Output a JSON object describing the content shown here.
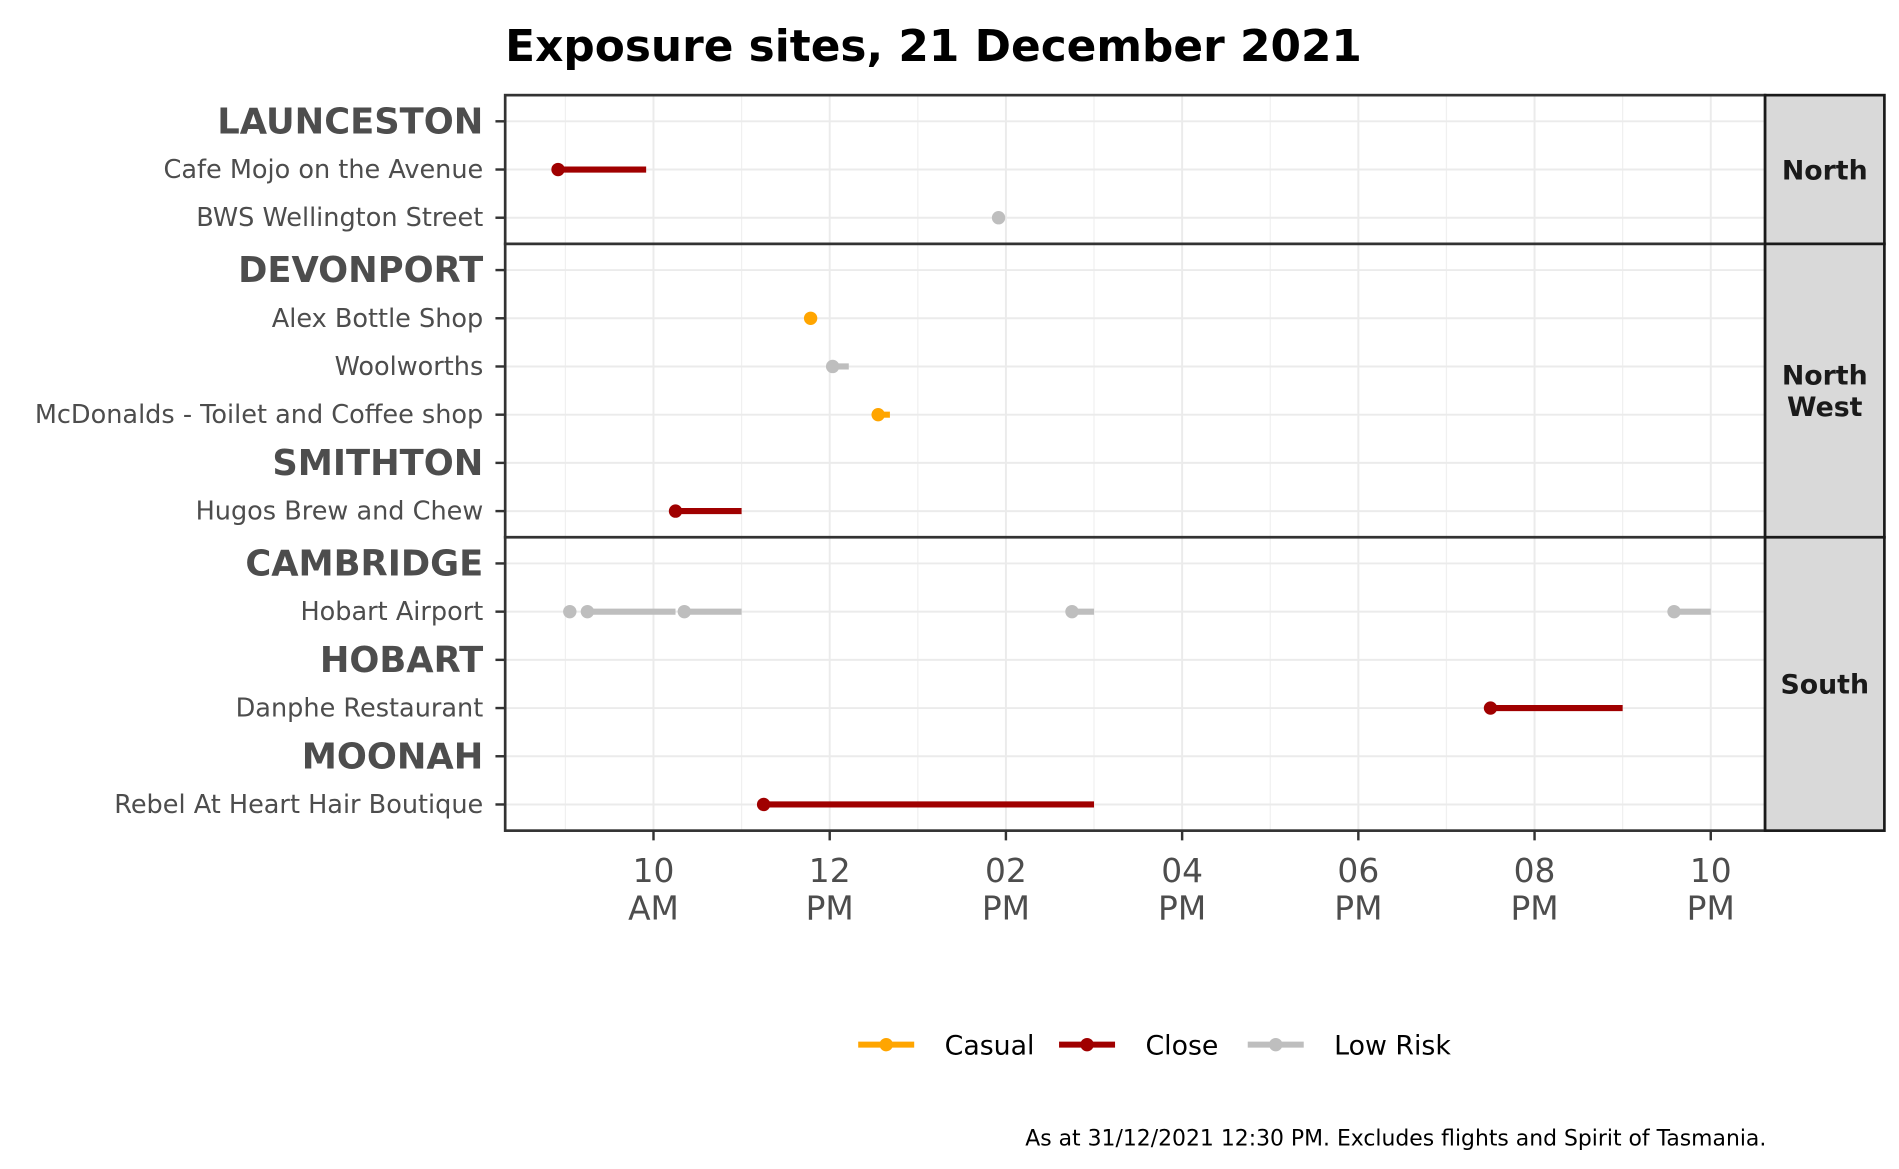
{
  "chart_data": {
    "type": "timeline",
    "title": "Exposure sites, 21 December 2021",
    "xlabel": "",
    "ylabel": "",
    "xlim": [
      "08:19",
      "22:37"
    ],
    "x_ticks": [
      {
        "time": "10:00",
        "line1": "10",
        "line2": "AM"
      },
      {
        "time": "12:00",
        "line1": "12",
        "line2": "PM"
      },
      {
        "time": "14:00",
        "line1": "02",
        "line2": "PM"
      },
      {
        "time": "16:00",
        "line1": "04",
        "line2": "PM"
      },
      {
        "time": "18:00",
        "line1": "06",
        "line2": "PM"
      },
      {
        "time": "20:00",
        "line1": "08",
        "line2": "PM"
      },
      {
        "time": "22:00",
        "line1": "10",
        "line2": "PM"
      }
    ],
    "grid": true,
    "legend_position": "bottom",
    "legend": [
      {
        "name": "Casual",
        "color": "#FFA500"
      },
      {
        "name": "Close",
        "color": "#A00000"
      },
      {
        "name": "Low Risk",
        "color": "#BEBEBE"
      }
    ],
    "panels": [
      {
        "strip": [
          "North"
        ],
        "rows": [
          {
            "label": "LAUNCESTON",
            "heading": true,
            "segments": []
          },
          {
            "label": "Cafe Mojo on the Avenue",
            "segments": [
              {
                "start": "08:55",
                "end": "09:55",
                "type": "Close"
              }
            ]
          },
          {
            "label": "BWS Wellington Street",
            "segments": [
              {
                "start": "13:55",
                "end": "13:55",
                "type": "Low Risk"
              }
            ]
          }
        ]
      },
      {
        "strip": [
          "North",
          "West"
        ],
        "rows": [
          {
            "label": "DEVONPORT",
            "heading": true,
            "segments": []
          },
          {
            "label": "Alex Bottle Shop",
            "segments": [
              {
                "start": "11:47",
                "end": "11:47",
                "type": "Casual"
              }
            ]
          },
          {
            "label": "Woolworths",
            "segments": [
              {
                "start": "12:02",
                "end": "12:13",
                "type": "Low Risk"
              }
            ]
          },
          {
            "label": "McDonalds - Toilet and Coffee shop",
            "segments": [
              {
                "start": "12:33",
                "end": "12:41",
                "type": "Casual"
              }
            ]
          },
          {
            "label": "SMITHTON",
            "heading": true,
            "segments": []
          },
          {
            "label": "Hugos Brew and Chew",
            "segments": [
              {
                "start": "10:15",
                "end": "11:00",
                "type": "Close"
              }
            ]
          }
        ]
      },
      {
        "strip": [
          "South"
        ],
        "rows": [
          {
            "label": "CAMBRIDGE",
            "heading": true,
            "segments": []
          },
          {
            "label": "Hobart Airport",
            "segments": [
              {
                "start": "09:03",
                "end": "09:03",
                "type": "Low Risk"
              },
              {
                "start": "09:15",
                "end": "10:15",
                "type": "Low Risk"
              },
              {
                "start": "10:21",
                "end": "11:00",
                "type": "Low Risk"
              },
              {
                "start": "14:45",
                "end": "15:00",
                "type": "Low Risk"
              },
              {
                "start": "21:35",
                "end": "22:00",
                "type": "Low Risk"
              }
            ]
          },
          {
            "label": "HOBART",
            "heading": true,
            "segments": []
          },
          {
            "label": "Danphe Restaurant",
            "segments": [
              {
                "start": "19:30",
                "end": "21:00",
                "type": "Close"
              }
            ]
          },
          {
            "label": "MOONAH",
            "heading": true,
            "segments": []
          },
          {
            "label": "Rebel At Heart Hair Boutique",
            "segments": [
              {
                "start": "11:15",
                "end": "15:00",
                "type": "Close"
              }
            ]
          }
        ]
      }
    ],
    "caption": "As at 31/12/2021 12:30 PM. Excludes flights and Spirit of Tasmania."
  }
}
